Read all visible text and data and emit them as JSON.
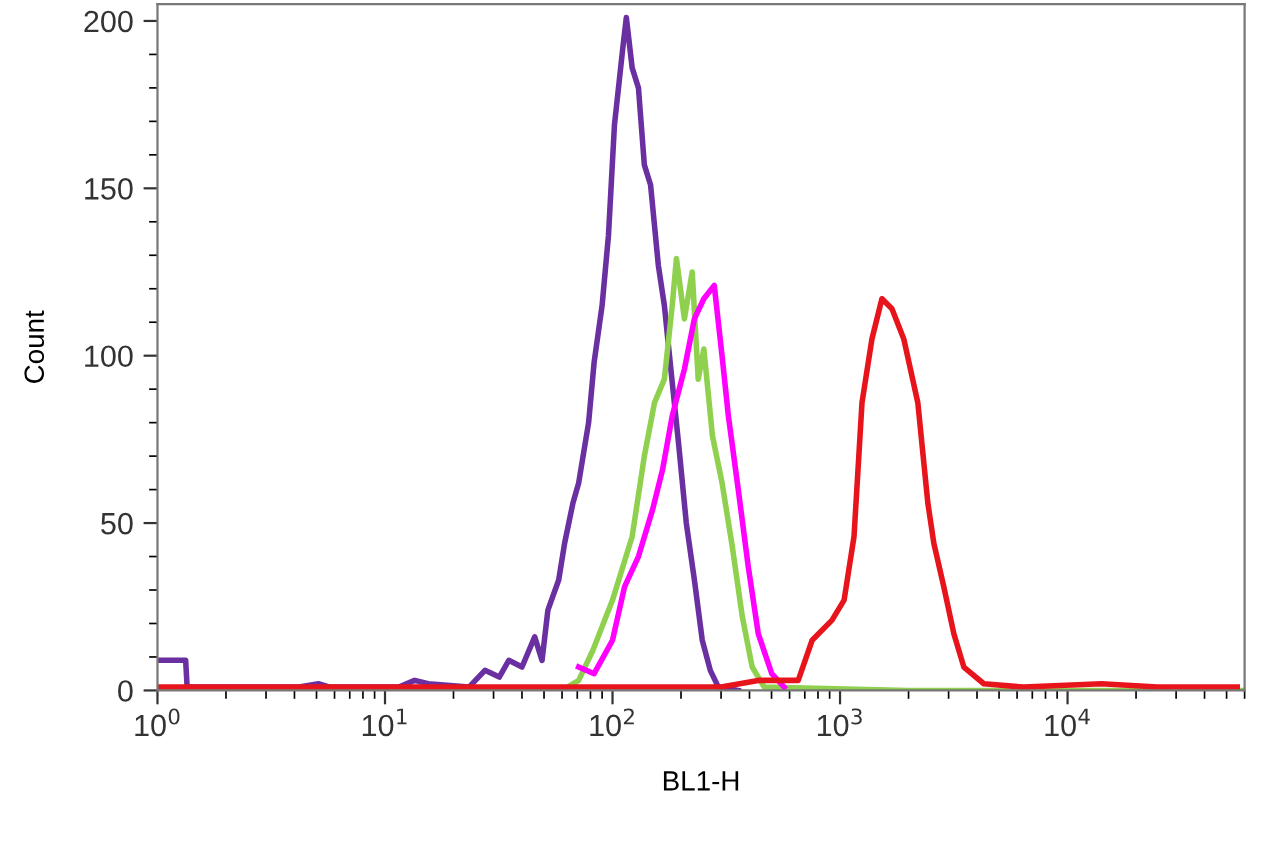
{
  "chart_data": {
    "type": "line",
    "xlabel": "BL1-H",
    "ylabel": "Count",
    "log": "x",
    "xlim": [
      1,
      60000
    ],
    "ylim": [
      0,
      205
    ],
    "xticks": [
      {
        "value": 1,
        "label": "10$^{0}$"
      },
      {
        "value": 10,
        "label": "10$^{1}$"
      },
      {
        "value": 100,
        "label": "10$^{2}$"
      },
      {
        "value": 1000,
        "label": "10$^{3}$"
      },
      {
        "value": 10000,
        "label": "10$^{4}$"
      }
    ],
    "yticks": [
      0,
      50,
      100,
      150,
      200
    ],
    "grid": false,
    "marker": "none",
    "line_style": "solid",
    "series": [
      {
        "color": "#6a2fa0",
        "x": [
          1,
          1.33,
          1.35,
          2.29,
          2.8,
          4.2,
          5.1,
          5.7,
          11.5,
          13.5,
          15.5,
          23.4,
          27.5,
          31.8,
          35,
          40,
          45.5,
          49,
          52,
          58,
          61.6,
          67,
          71,
          78.5,
          83,
          90,
          96,
          102,
          111,
          115,
          122,
          130,
          138,
          147,
          159,
          169,
          183,
          195,
          211,
          229,
          248,
          269,
          292,
          357
        ],
        "values": [
          9,
          9,
          1,
          1,
          1,
          1,
          2,
          1,
          1,
          3,
          2,
          1,
          6,
          4,
          9,
          7,
          16,
          9,
          24,
          33,
          44,
          56,
          62,
          80,
          98,
          115,
          136,
          169,
          192,
          201,
          186,
          180,
          157,
          151,
          127,
          115,
          92,
          74,
          50,
          33,
          15,
          6,
          1,
          0
        ]
      },
      {
        "color": "#8fd14f",
        "x": [
          1,
          60,
          71,
          82,
          100,
          122,
          138,
          153,
          169,
          183,
          191,
          207,
          224,
          238,
          252,
          275,
          303,
          336,
          372,
          411,
          464,
          2000,
          60000
        ],
        "values": [
          0,
          0,
          3,
          12,
          27,
          46,
          70,
          86,
          93,
          115,
          129,
          111,
          125,
          93,
          102,
          76,
          62,
          43,
          22,
          7,
          1,
          0,
          0
        ]
      },
      {
        "color": "#ff00ff",
        "x": [
          71,
          83,
          100,
          113,
          130,
          150,
          166,
          183,
          207,
          229,
          252,
          280,
          304,
          323,
          357,
          395,
          437,
          501,
          568
        ],
        "values": [
          7,
          5,
          15,
          31,
          40,
          54,
          66,
          82,
          96,
          111,
          117,
          121,
          99,
          82,
          60,
          37,
          17,
          5,
          1
        ]
      },
      {
        "color": "#e8141c",
        "x": [
          1,
          300,
          437,
          655,
          754,
          922,
          1042,
          1152,
          1249,
          1381,
          1528,
          1691,
          1906,
          2197,
          2432,
          2583,
          2857,
          3162,
          3500,
          4285,
          6412,
          14100,
          24800,
          55700
        ],
        "values": [
          1,
          1,
          3,
          3,
          15,
          21,
          27,
          46,
          86,
          105,
          117,
          114,
          105,
          86,
          56,
          44,
          31,
          17,
          7,
          2,
          1,
          2,
          1,
          1
        ]
      }
    ]
  }
}
